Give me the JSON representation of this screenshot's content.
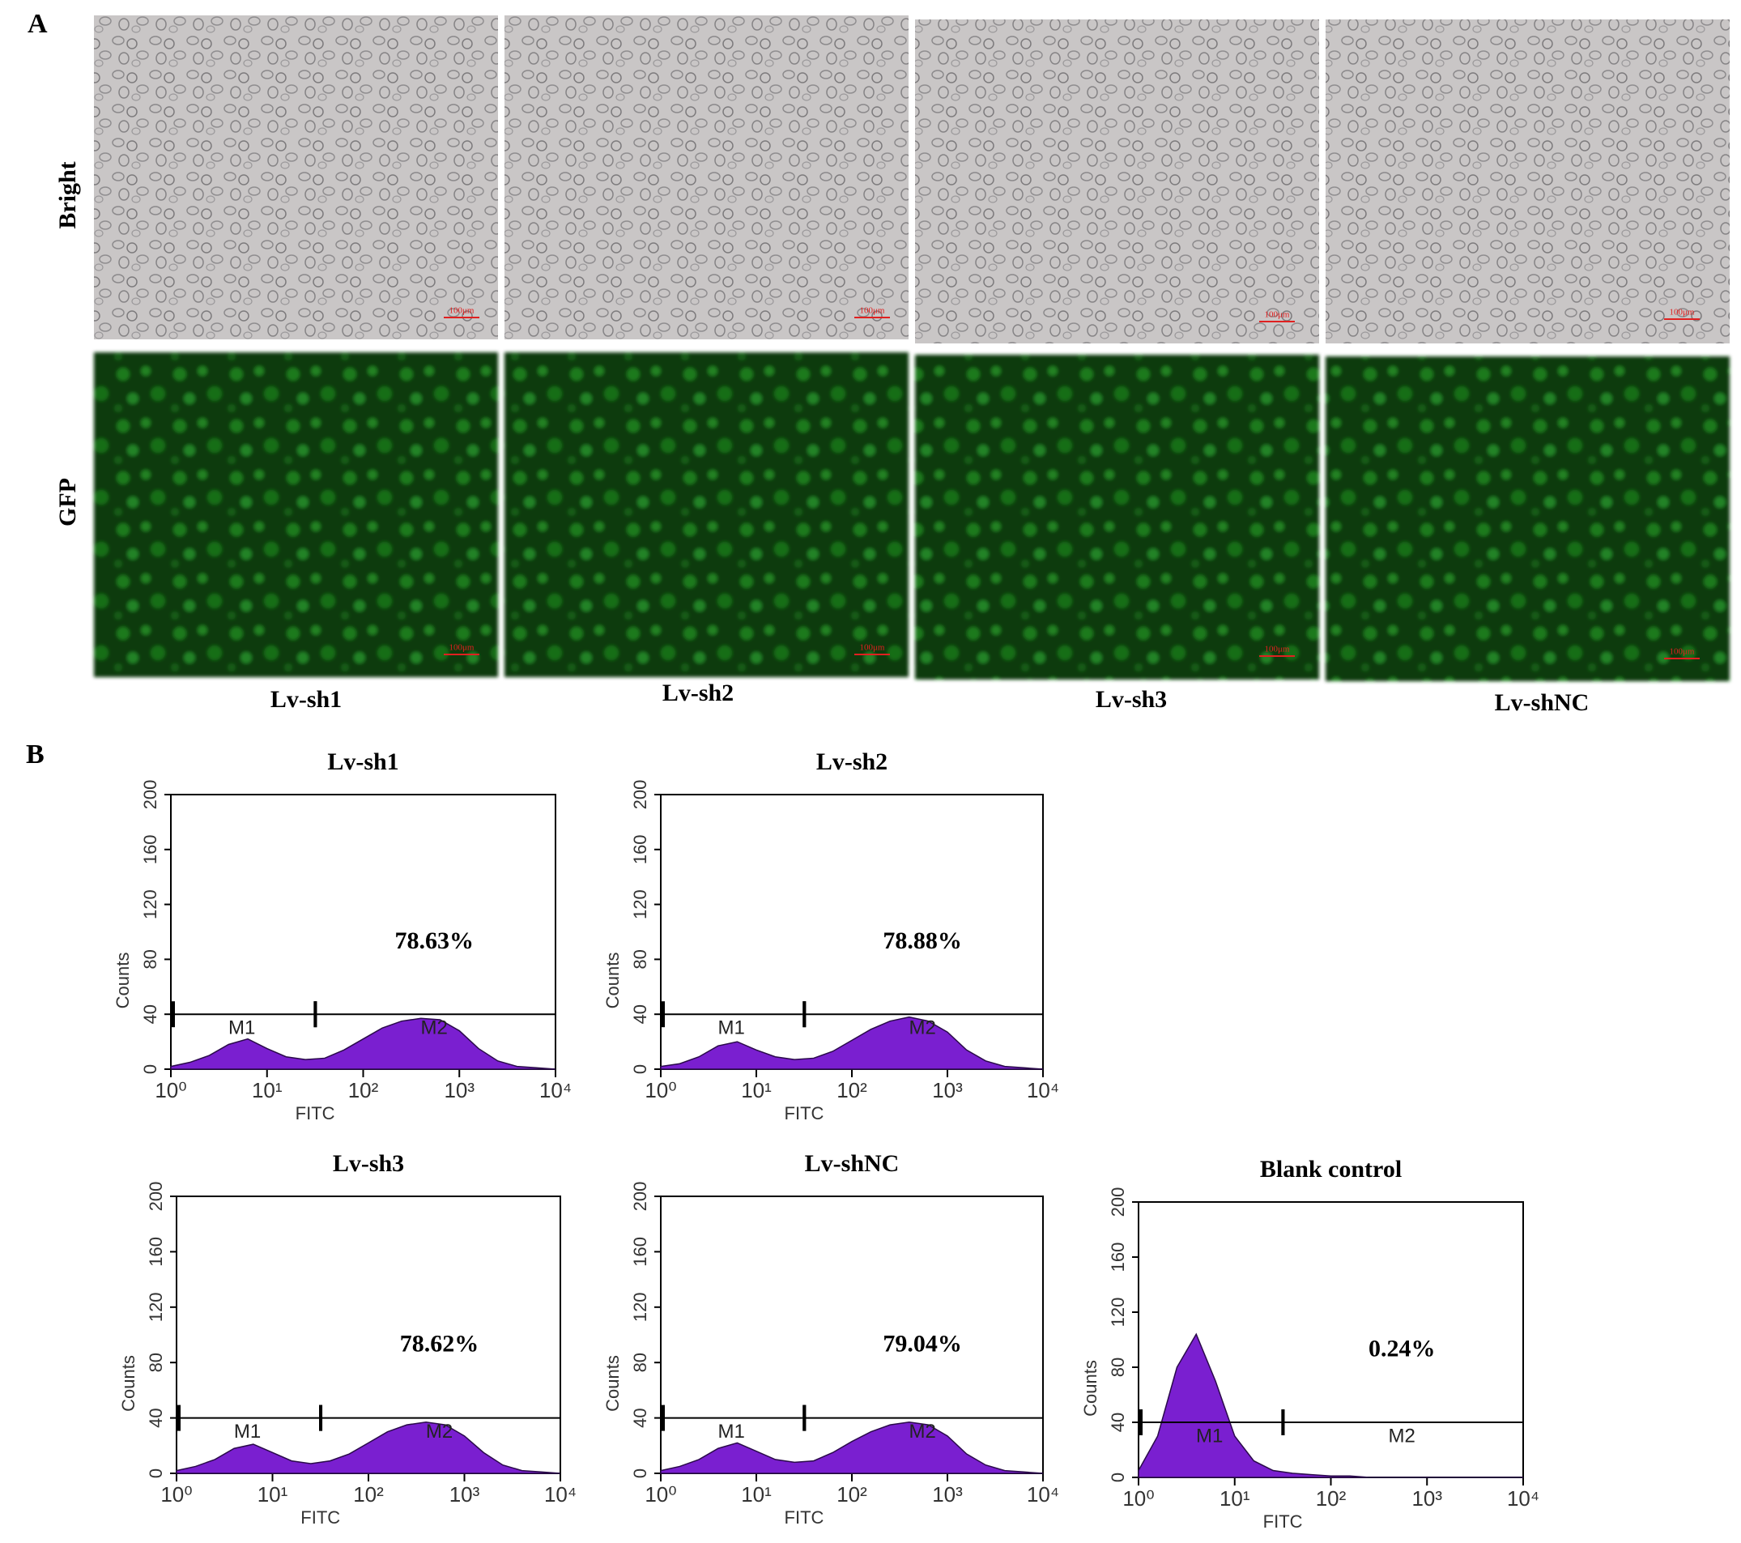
{
  "panel_a": {
    "label": "A",
    "row_labels": [
      "Bright",
      "GFP"
    ],
    "column_labels": [
      "Lv-sh1",
      "Lv-sh2",
      "Lv-sh3",
      "Lv-shNC"
    ],
    "scale_bar": "100μm"
  },
  "panel_b": {
    "label": "B"
  },
  "chart_data": [
    {
      "type": "area",
      "title": "Lv-sh1",
      "xlabel": "FITC",
      "ylabel": "Counts",
      "log_x": true,
      "color": "#7a1fd0",
      "x": [
        1,
        1.58,
        2.51,
        3.98,
        6.31,
        10,
        15.8,
        25.1,
        39.8,
        63.1,
        100,
        158,
        251,
        398,
        631,
        1000,
        1585,
        2512,
        3981,
        6310,
        10000
      ],
      "values": [
        2,
        5,
        10,
        18,
        22,
        15,
        9,
        7,
        8,
        14,
        22,
        30,
        35,
        37,
        36,
        28,
        15,
        6,
        2,
        1,
        0
      ],
      "xlim": [
        1,
        10000
      ],
      "ylim": [
        0,
        200
      ],
      "xticks": [
        {
          "value": 1,
          "label": "10⁰"
        },
        {
          "value": 10,
          "label": "10¹"
        },
        {
          "value": 100,
          "label": "10²"
        },
        {
          "value": 1000,
          "label": "10³"
        },
        {
          "value": 10000,
          "label": "10⁴"
        }
      ],
      "yticks": [
        0,
        40,
        80,
        120,
        160,
        200
      ],
      "gate_level": 40,
      "gates": [
        {
          "label": "M1",
          "range": [
            1,
            30
          ]
        },
        {
          "label": "M2",
          "range": [
            30,
            10000
          ]
        }
      ],
      "annotation": "78.63%"
    },
    {
      "type": "area",
      "title": "Lv-sh2",
      "xlabel": "FITC",
      "ylabel": "Counts",
      "log_x": true,
      "color": "#7a1fd0",
      "x": [
        1,
        1.58,
        2.51,
        3.98,
        6.31,
        10,
        15.8,
        25.1,
        39.8,
        63.1,
        100,
        158,
        251,
        398,
        631,
        1000,
        1585,
        2512,
        3981,
        6310,
        10000
      ],
      "values": [
        2,
        4,
        9,
        17,
        20,
        14,
        9,
        7,
        8,
        13,
        21,
        29,
        35,
        38,
        35,
        27,
        14,
        6,
        2,
        1,
        0
      ],
      "xlim": [
        1,
        10000
      ],
      "ylim": [
        0,
        200
      ],
      "xticks": [
        {
          "value": 1,
          "label": "10⁰"
        },
        {
          "value": 10,
          "label": "10¹"
        },
        {
          "value": 100,
          "label": "10²"
        },
        {
          "value": 1000,
          "label": "10³"
        },
        {
          "value": 10000,
          "label": "10⁴"
        }
      ],
      "yticks": [
        0,
        40,
        80,
        120,
        160,
        200
      ],
      "gate_level": 40,
      "gates": [
        {
          "label": "M1",
          "range": [
            1,
            30
          ]
        },
        {
          "label": "M2",
          "range": [
            30,
            10000
          ]
        }
      ],
      "annotation": "78.88%"
    },
    {
      "type": "area",
      "title": "Lv-sh3",
      "xlabel": "FITC",
      "ylabel": "Counts",
      "log_x": true,
      "color": "#7a1fd0",
      "x": [
        1,
        1.58,
        2.51,
        3.98,
        6.31,
        10,
        15.8,
        25.1,
        39.8,
        63.1,
        100,
        158,
        251,
        398,
        631,
        1000,
        1585,
        2512,
        3981,
        6310,
        10000
      ],
      "values": [
        2,
        5,
        10,
        18,
        21,
        15,
        9,
        7,
        9,
        14,
        22,
        30,
        35,
        37,
        35,
        27,
        15,
        6,
        2,
        1,
        0
      ],
      "xlim": [
        1,
        10000
      ],
      "ylim": [
        0,
        200
      ],
      "xticks": [
        {
          "value": 1,
          "label": "10⁰"
        },
        {
          "value": 10,
          "label": "10¹"
        },
        {
          "value": 100,
          "label": "10²"
        },
        {
          "value": 1000,
          "label": "10³"
        },
        {
          "value": 10000,
          "label": "10⁴"
        }
      ],
      "yticks": [
        0,
        40,
        80,
        120,
        160,
        200
      ],
      "gate_level": 40,
      "gates": [
        {
          "label": "M1",
          "range": [
            1,
            30
          ]
        },
        {
          "label": "M2",
          "range": [
            30,
            10000
          ]
        }
      ],
      "annotation": "78.62%"
    },
    {
      "type": "area",
      "title": "Lv-shNC",
      "xlabel": "FITC",
      "ylabel": "Counts",
      "log_x": true,
      "color": "#7a1fd0",
      "x": [
        1,
        1.58,
        2.51,
        3.98,
        6.31,
        10,
        15.8,
        25.1,
        39.8,
        63.1,
        100,
        158,
        251,
        398,
        631,
        1000,
        1585,
        2512,
        3981,
        6310,
        10000
      ],
      "values": [
        2,
        5,
        10,
        18,
        22,
        16,
        10,
        8,
        9,
        15,
        23,
        30,
        35,
        37,
        35,
        27,
        14,
        6,
        2,
        1,
        0
      ],
      "xlim": [
        1,
        10000
      ],
      "ylim": [
        0,
        200
      ],
      "xticks": [
        {
          "value": 1,
          "label": "10⁰"
        },
        {
          "value": 10,
          "label": "10¹"
        },
        {
          "value": 100,
          "label": "10²"
        },
        {
          "value": 1000,
          "label": "10³"
        },
        {
          "value": 10000,
          "label": "10⁴"
        }
      ],
      "yticks": [
        0,
        40,
        80,
        120,
        160,
        200
      ],
      "gate_level": 40,
      "gates": [
        {
          "label": "M1",
          "range": [
            1,
            30
          ]
        },
        {
          "label": "M2",
          "range": [
            30,
            10000
          ]
        }
      ],
      "annotation": "79.04%"
    },
    {
      "type": "area",
      "title": "Blank control",
      "xlabel": "FITC",
      "ylabel": "Counts",
      "log_x": true,
      "color": "#7a1fd0",
      "x": [
        1,
        1.58,
        2.51,
        3.98,
        6.31,
        10,
        15.8,
        25.1,
        39.8,
        63.1,
        100,
        158,
        251,
        398,
        631,
        1000,
        1585,
        2512,
        3981,
        6310,
        10000
      ],
      "values": [
        5,
        30,
        80,
        104,
        70,
        30,
        12,
        5,
        3,
        2,
        1,
        1,
        0,
        0,
        0,
        0,
        0,
        0,
        0,
        0,
        0
      ],
      "xlim": [
        1,
        10000
      ],
      "ylim": [
        0,
        200
      ],
      "xticks": [
        {
          "value": 1,
          "label": "10⁰"
        },
        {
          "value": 10,
          "label": "10¹"
        },
        {
          "value": 100,
          "label": "10²"
        },
        {
          "value": 1000,
          "label": "10³"
        },
        {
          "value": 10000,
          "label": "10⁴"
        }
      ],
      "yticks": [
        0,
        40,
        80,
        120,
        160,
        200
      ],
      "gate_level": 40,
      "gates": [
        {
          "label": "M1",
          "range": [
            1,
            30
          ]
        },
        {
          "label": "M2",
          "range": [
            30,
            10000
          ]
        }
      ],
      "annotation": "0.24%"
    }
  ]
}
